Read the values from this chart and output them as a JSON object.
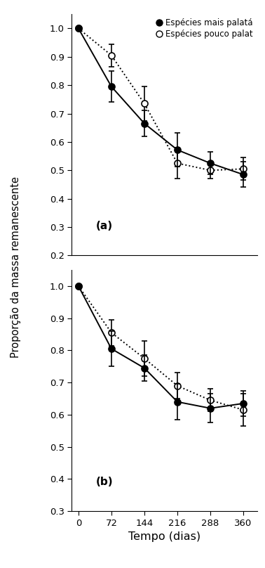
{
  "x": [
    0,
    72,
    144,
    216,
    288,
    360
  ],
  "panel_a": {
    "solid_y": [
      1.0,
      0.795,
      0.665,
      0.572,
      0.525,
      0.485
    ],
    "solid_yerr": [
      0.0,
      0.055,
      0.045,
      0.06,
      0.04,
      0.045
    ],
    "dotted_y": [
      1.0,
      0.905,
      0.735,
      0.525,
      0.5,
      0.505
    ],
    "dotted_yerr": [
      0.0,
      0.04,
      0.06,
      0.055,
      0.03,
      0.04
    ],
    "label": "(a)",
    "ylim": [
      0.2,
      1.05
    ],
    "yticks": [
      0.2,
      0.3,
      0.4,
      0.5,
      0.6,
      0.7,
      0.8,
      0.9,
      1.0
    ]
  },
  "panel_b": {
    "solid_y": [
      1.0,
      0.805,
      0.745,
      0.64,
      0.62,
      0.635
    ],
    "solid_yerr": [
      0.0,
      0.055,
      0.04,
      0.055,
      0.045,
      0.04
    ],
    "dotted_y": [
      1.0,
      0.855,
      0.775,
      0.69,
      0.645,
      0.615
    ],
    "dotted_yerr": [
      0.0,
      0.04,
      0.055,
      0.04,
      0.035,
      0.05
    ],
    "label": "(b)",
    "ylim": [
      0.3,
      1.05
    ],
    "yticks": [
      0.3,
      0.4,
      0.5,
      0.6,
      0.7,
      0.8,
      0.9,
      1.0
    ]
  },
  "xticks": [
    0,
    72,
    144,
    216,
    288,
    360
  ],
  "xlabel": "Tempo (dias)",
  "ylabel": "Proporção da massa remanescente",
  "legend_solid": "Espécies mais palatá",
  "legend_dotted": "Espécies pouco palat",
  "figsize": [
    3.78,
    8.08
  ],
  "dpi": 100
}
